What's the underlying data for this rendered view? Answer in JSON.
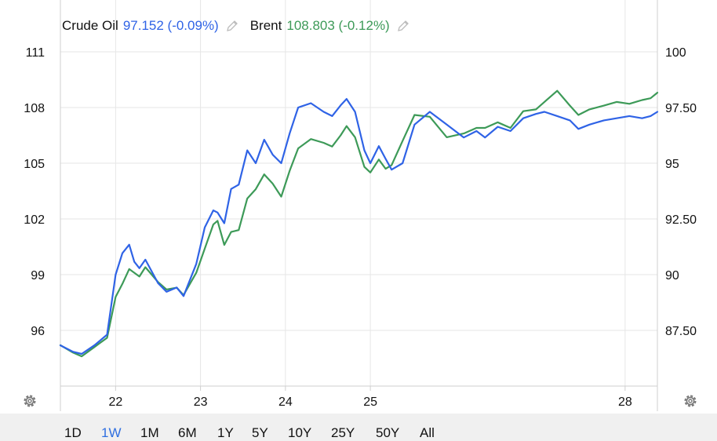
{
  "legend": {
    "series1_label": "Crude Oil",
    "series1_value": "97.152 (-0.09%)",
    "series2_label": "Brent",
    "series2_value": "108.803 (-0.12%)"
  },
  "colors": {
    "crude": "#2f63e6",
    "brent": "#3d9a58",
    "grid": "#e6e6e6",
    "axis": "#cfcfcf",
    "active": "#2f6fe0"
  },
  "range_buttons": [
    {
      "label": "1D",
      "active": false
    },
    {
      "label": "1W",
      "active": true
    },
    {
      "label": "1M",
      "active": false
    },
    {
      "label": "6M",
      "active": false
    },
    {
      "label": "1Y",
      "active": false
    },
    {
      "label": "5Y",
      "active": false
    },
    {
      "label": "10Y",
      "active": false
    },
    {
      "label": "25Y",
      "active": false
    },
    {
      "label": "50Y",
      "active": false
    },
    {
      "label": "All",
      "active": false
    }
  ],
  "chart_data": {
    "type": "line",
    "x_ticks": [
      "22",
      "23",
      "24",
      "25",
      "28"
    ],
    "y_left_ticks": [
      "111",
      "108",
      "105",
      "102",
      "99",
      "96"
    ],
    "y_right_ticks": [
      "100",
      "97.50",
      "95",
      "92.50",
      "90",
      "87.50"
    ],
    "ylim_left": [
      93.0,
      111.0
    ],
    "ylim_right": [
      84.4,
      100.0
    ],
    "xlim": [
      21.35,
      28.38
    ],
    "grid": true,
    "legend_position": "top-left",
    "series": [
      {
        "name": "Brent",
        "axis": "left",
        "x": [
          21.35,
          21.5,
          21.6,
          21.75,
          21.9,
          22.0,
          22.08,
          22.16,
          22.22,
          22.28,
          22.35,
          22.5,
          22.6,
          22.72,
          22.8,
          22.95,
          23.05,
          23.15,
          23.2,
          23.28,
          23.36,
          23.45,
          23.55,
          23.65,
          23.75,
          23.85,
          23.95,
          24.05,
          24.15,
          24.3,
          24.45,
          24.55,
          24.65,
          24.72,
          24.82,
          24.93,
          25.0,
          25.1,
          25.18,
          25.25,
          25.38,
          25.52,
          25.7,
          25.9,
          26.1,
          26.25,
          26.35,
          26.5,
          26.65,
          26.8,
          26.95,
          27.05,
          27.2,
          27.35,
          27.45,
          27.58,
          27.75,
          27.9,
          28.05,
          28.2,
          28.3,
          28.38
        ],
        "values": [
          95.2,
          94.8,
          94.6,
          95.1,
          95.6,
          97.8,
          98.5,
          99.3,
          99.1,
          98.9,
          99.4,
          98.6,
          98.2,
          98.3,
          97.9,
          99.1,
          100.4,
          101.7,
          101.9,
          100.6,
          101.3,
          101.4,
          103.1,
          103.6,
          104.4,
          103.9,
          103.2,
          104.6,
          105.8,
          106.3,
          106.1,
          105.9,
          106.5,
          107.0,
          106.4,
          104.8,
          104.5,
          105.2,
          104.7,
          104.9,
          106.2,
          107.6,
          107.5,
          106.4,
          106.6,
          106.9,
          106.9,
          107.2,
          106.9,
          107.8,
          107.9,
          108.3,
          108.9,
          108.1,
          107.6,
          107.9,
          108.1,
          108.3,
          108.2,
          108.4,
          108.5,
          108.8
        ]
      },
      {
        "name": "Crude Oil",
        "axis": "right",
        "x": [
          21.35,
          21.5,
          21.6,
          21.75,
          21.9,
          22.0,
          22.08,
          22.16,
          22.22,
          22.28,
          22.35,
          22.5,
          22.6,
          22.72,
          22.8,
          22.95,
          23.05,
          23.15,
          23.2,
          23.28,
          23.36,
          23.45,
          23.55,
          23.65,
          23.75,
          23.85,
          23.95,
          24.05,
          24.15,
          24.3,
          24.45,
          24.55,
          24.65,
          24.72,
          24.82,
          24.93,
          25.0,
          25.1,
          25.18,
          25.25,
          25.38,
          25.52,
          25.7,
          25.9,
          26.1,
          26.25,
          26.35,
          26.5,
          26.65,
          26.8,
          26.95,
          27.05,
          27.2,
          27.35,
          27.45,
          27.58,
          27.75,
          27.9,
          28.05,
          28.2,
          28.3,
          28.38
        ],
        "values": [
          86.3,
          86.0,
          85.9,
          86.3,
          86.8,
          89.6,
          90.6,
          91.0,
          90.2,
          89.9,
          90.3,
          89.2,
          88.8,
          89.0,
          88.6,
          90.1,
          91.8,
          92.6,
          92.5,
          92.0,
          93.6,
          93.8,
          95.4,
          94.8,
          95.9,
          95.2,
          94.8,
          96.2,
          97.4,
          97.6,
          97.2,
          97.0,
          97.5,
          97.8,
          97.2,
          95.4,
          94.8,
          95.6,
          95.0,
          94.5,
          94.8,
          96.6,
          97.2,
          96.6,
          96.0,
          96.3,
          96.0,
          96.5,
          96.3,
          96.9,
          97.1,
          97.2,
          97.0,
          96.8,
          96.4,
          96.6,
          96.8,
          96.9,
          97.0,
          96.9,
          97.0,
          97.2
        ]
      }
    ]
  }
}
